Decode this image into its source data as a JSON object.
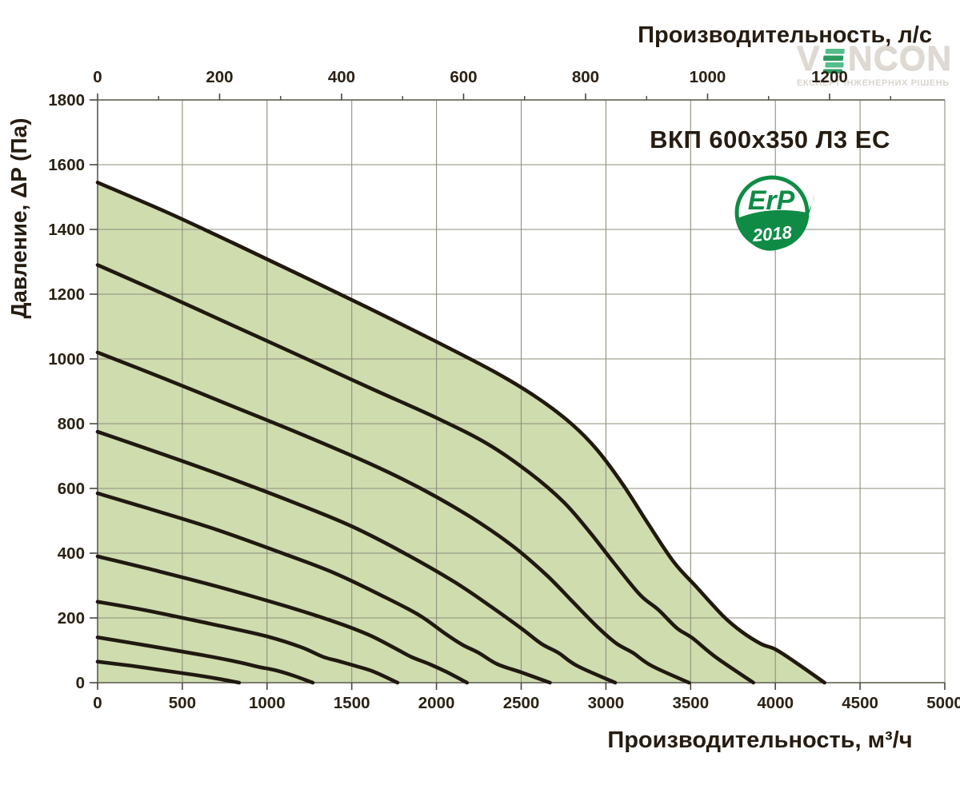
{
  "title": "ВКП 600x350 Л3 ЕС",
  "badge": {
    "top": "ErP",
    "year": "2018"
  },
  "watermark": {
    "brand_v": "V",
    "brand_rest": "NCON",
    "tagline": "ЕКСПЕРТ ІНЖЕНЕРНИХ РІШЕНЬ"
  },
  "axes": {
    "top": {
      "label": "Производительность, л/с",
      "major_ticks": [
        0,
        200,
        400,
        600,
        800,
        1000,
        1200
      ],
      "minor_ticks": [
        100,
        300,
        500,
        700,
        900,
        1100,
        1300
      ]
    },
    "bottom": {
      "label": "Производительность, м³/ч",
      "ticks": [
        0,
        500,
        1000,
        1500,
        2000,
        2500,
        3000,
        3500,
        4000,
        4500,
        5000
      ]
    },
    "left": {
      "label": "Давление, ΔP (Па)",
      "ticks": [
        0,
        200,
        400,
        600,
        800,
        1000,
        1200,
        1400,
        1600,
        1800
      ]
    }
  },
  "colors": {
    "curve": "#201910",
    "fill": "#cfdcae",
    "grid": "#8e8e7e",
    "frame": "#6b6b60",
    "tick": "#4a463f",
    "text": "#2b2114",
    "badge_green": "#0f8b45",
    "watermark_gray": "#ded9d2",
    "watermark_green_light": "#55bd8b",
    "watermark_green_dark": "#2e9a62"
  },
  "chart_data": {
    "type": "line",
    "title": "ВКП 600x350 Л3 ЕС",
    "xlabel_bottom": "Производительность, м³/ч",
    "xlabel_top": "Производительность, л/с",
    "ylabel": "Давление, ΔP (Па)",
    "xlim": [
      0,
      5000
    ],
    "x2lim": [
      0,
      1388.9
    ],
    "ylim": [
      0,
      1800
    ],
    "grid": true,
    "legend": "none",
    "fill_under_series": "speed-curve-1",
    "series": [
      {
        "name": "speed-curve-1",
        "points": [
          [
            0,
            1545
          ],
          [
            400,
            1455
          ],
          [
            800,
            1358
          ],
          [
            1200,
            1258
          ],
          [
            1600,
            1157
          ],
          [
            2000,
            1053
          ],
          [
            2350,
            958
          ],
          [
            2600,
            878
          ],
          [
            2800,
            798
          ],
          [
            2950,
            718
          ],
          [
            3100,
            612
          ],
          [
            3250,
            490
          ],
          [
            3400,
            373
          ],
          [
            3530,
            298
          ],
          [
            3690,
            207
          ],
          [
            3800,
            158
          ],
          [
            3915,
            120
          ],
          [
            4000,
            103
          ],
          [
            4110,
            66
          ],
          [
            4290,
            0
          ]
        ]
      },
      {
        "name": "speed-curve-2",
        "points": [
          [
            0,
            1290
          ],
          [
            400,
            1198
          ],
          [
            800,
            1103
          ],
          [
            1200,
            1008
          ],
          [
            1600,
            912
          ],
          [
            2000,
            818
          ],
          [
            2300,
            738
          ],
          [
            2550,
            648
          ],
          [
            2750,
            558
          ],
          [
            2900,
            468
          ],
          [
            3050,
            368
          ],
          [
            3200,
            272
          ],
          [
            3310,
            225
          ],
          [
            3420,
            168
          ],
          [
            3510,
            138
          ],
          [
            3650,
            78
          ],
          [
            3870,
            0
          ]
        ]
      },
      {
        "name": "speed-curve-3",
        "points": [
          [
            0,
            1020
          ],
          [
            400,
            938
          ],
          [
            800,
            853
          ],
          [
            1200,
            768
          ],
          [
            1600,
            678
          ],
          [
            1900,
            602
          ],
          [
            2200,
            512
          ],
          [
            2450,
            422
          ],
          [
            2650,
            332
          ],
          [
            2800,
            252
          ],
          [
            2950,
            172
          ],
          [
            3060,
            122
          ],
          [
            3160,
            92
          ],
          [
            3270,
            52
          ],
          [
            3490,
            0
          ]
        ]
      },
      {
        "name": "speed-curve-4",
        "points": [
          [
            0,
            775
          ],
          [
            400,
            703
          ],
          [
            800,
            628
          ],
          [
            1200,
            548
          ],
          [
            1500,
            483
          ],
          [
            1800,
            403
          ],
          [
            2100,
            313
          ],
          [
            2300,
            243
          ],
          [
            2500,
            168
          ],
          [
            2620,
            120
          ],
          [
            2720,
            92
          ],
          [
            2830,
            52
          ],
          [
            3055,
            0
          ]
        ]
      },
      {
        "name": "speed-curve-5",
        "points": [
          [
            0,
            585
          ],
          [
            300,
            538
          ],
          [
            700,
            473
          ],
          [
            1100,
            398
          ],
          [
            1400,
            338
          ],
          [
            1700,
            263
          ],
          [
            1900,
            208
          ],
          [
            2050,
            152
          ],
          [
            2150,
            118
          ],
          [
            2250,
            92
          ],
          [
            2360,
            57
          ],
          [
            2500,
            32
          ],
          [
            2670,
            0
          ]
        ]
      },
      {
        "name": "speed-curve-6",
        "points": [
          [
            0,
            390
          ],
          [
            300,
            352
          ],
          [
            700,
            298
          ],
          [
            1100,
            238
          ],
          [
            1400,
            188
          ],
          [
            1600,
            148
          ],
          [
            1750,
            108
          ],
          [
            1850,
            80
          ],
          [
            1960,
            57
          ],
          [
            2060,
            33
          ],
          [
            2180,
            0
          ]
        ]
      },
      {
        "name": "speed-curve-7",
        "points": [
          [
            0,
            250
          ],
          [
            300,
            222
          ],
          [
            700,
            178
          ],
          [
            1000,
            143
          ],
          [
            1200,
            110
          ],
          [
            1330,
            80
          ],
          [
            1420,
            67
          ],
          [
            1520,
            52
          ],
          [
            1630,
            34
          ],
          [
            1770,
            0
          ]
        ]
      },
      {
        "name": "speed-curve-8",
        "points": [
          [
            0,
            140
          ],
          [
            300,
            114
          ],
          [
            600,
            87
          ],
          [
            800,
            67
          ],
          [
            950,
            49
          ],
          [
            1060,
            37
          ],
          [
            1160,
            21
          ],
          [
            1270,
            0
          ]
        ]
      },
      {
        "name": "speed-curve-9",
        "points": [
          [
            0,
            65
          ],
          [
            200,
            52
          ],
          [
            400,
            37
          ],
          [
            560,
            25
          ],
          [
            700,
            13
          ],
          [
            835,
            0
          ]
        ]
      }
    ]
  }
}
